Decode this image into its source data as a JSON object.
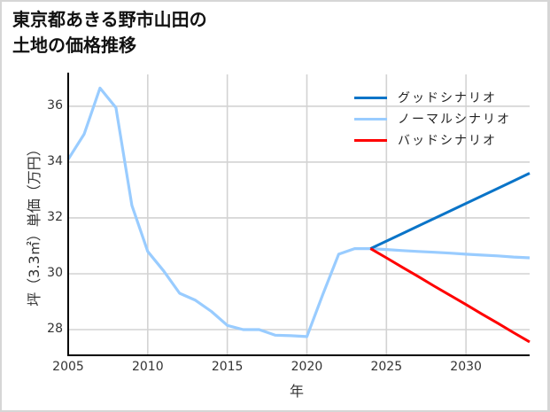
{
  "title": {
    "line1": "東京都あきる野市山田の",
    "line2": "土地の価格推移"
  },
  "chart_data": {
    "type": "line",
    "title": "東京都あきる野市山田の土地の価格推移",
    "xlabel": "年",
    "ylabel": "坪（3.3㎡）単価（万円）",
    "xlim": [
      2005,
      2034
    ],
    "ylim": [
      27.08,
      37.14
    ],
    "xticks": [
      "2005",
      "2010",
      "2015",
      "2020",
      "2025",
      "2030"
    ],
    "yticks": [
      "28",
      "30",
      "32",
      "34",
      "36"
    ],
    "grid": true,
    "legend_position": "upper right",
    "series": [
      {
        "name": "グッドシナリオ",
        "color": "#0a74c8",
        "x": [
          2024,
          2025,
          2026,
          2027,
          2028,
          2029,
          2030,
          2031,
          2032,
          2033,
          2034
        ],
        "values": [
          30.9,
          31.17,
          31.44,
          31.71,
          31.98,
          32.25,
          32.52,
          32.79,
          33.06,
          33.33,
          33.6
        ]
      },
      {
        "name": "ノーマルシナリオ",
        "color": "#99ccff",
        "x": [
          2005,
          2006,
          2007,
          2008,
          2009,
          2010,
          2011,
          2012,
          2013,
          2014,
          2015,
          2016,
          2017,
          2018,
          2019,
          2020,
          2021,
          2022,
          2023,
          2024,
          2025,
          2026,
          2027,
          2028,
          2029,
          2030,
          2031,
          2032,
          2033,
          2034
        ],
        "values": [
          34.1,
          35.0,
          36.65,
          35.95,
          32.45,
          30.8,
          30.1,
          29.3,
          29.05,
          28.65,
          28.15,
          28.0,
          28.0,
          27.8,
          27.78,
          27.75,
          29.25,
          30.7,
          30.9,
          30.9,
          30.87,
          30.83,
          30.8,
          30.77,
          30.74,
          30.7,
          30.67,
          30.64,
          30.6,
          30.57
        ]
      },
      {
        "name": "バッドシナリオ",
        "color": "#ff0000",
        "x": [
          2024,
          2025,
          2026,
          2027,
          2028,
          2029,
          2030,
          2031,
          2032,
          2033,
          2034
        ],
        "values": [
          30.9,
          30.57,
          30.23,
          29.9,
          29.56,
          29.23,
          28.9,
          28.56,
          28.23,
          27.89,
          27.56
        ]
      }
    ]
  }
}
